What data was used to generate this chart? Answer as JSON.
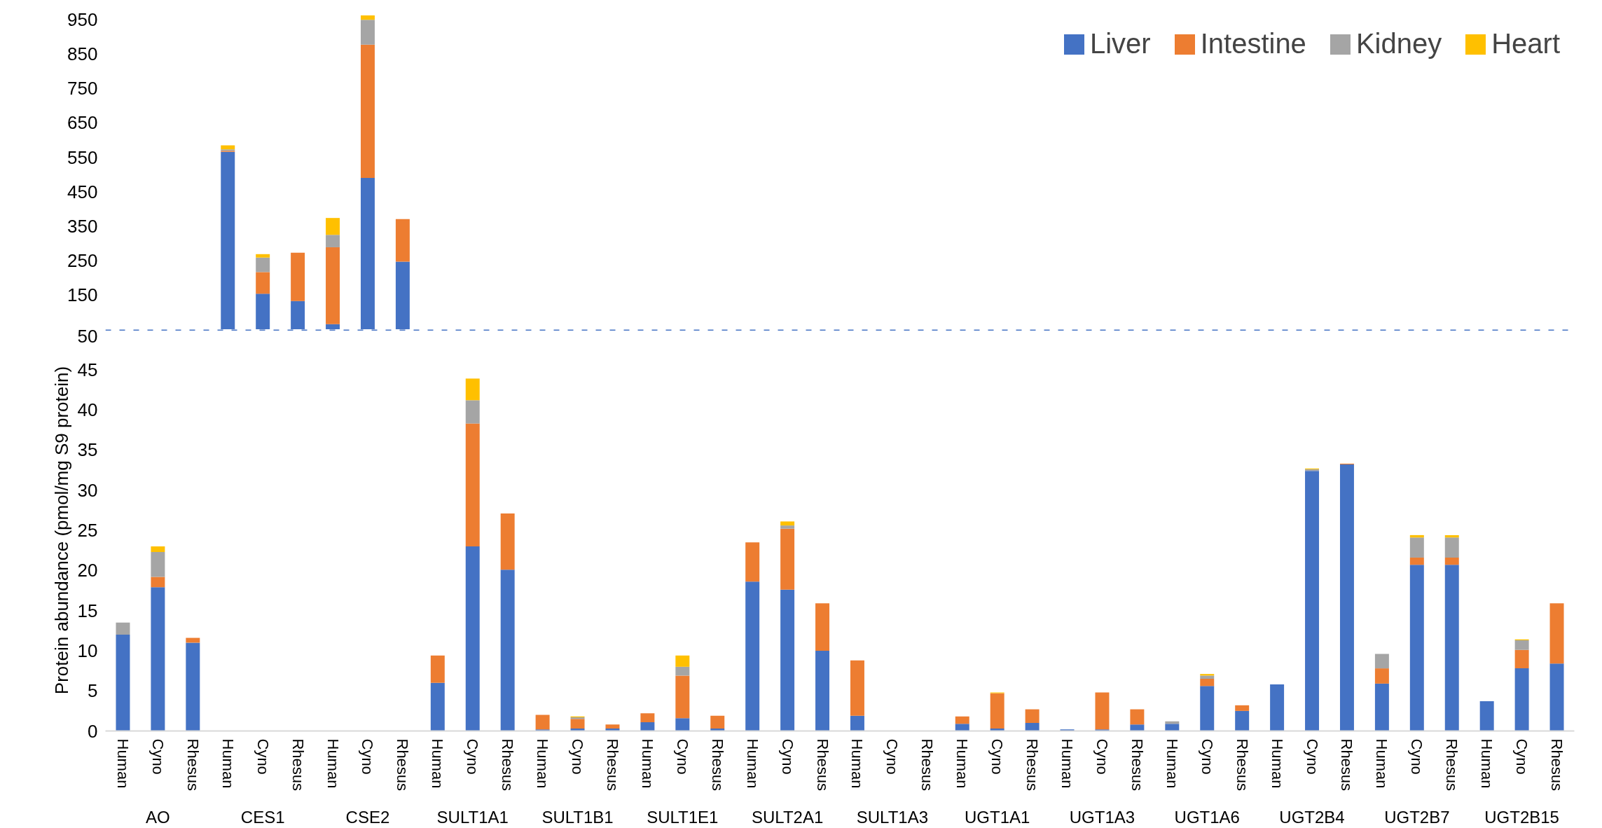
{
  "chart_data": [
    {
      "type": "bar",
      "tick_labels": "y",
      "legend": "top right",
      "ylim": [
        50,
        965
      ],
      "yticks": [
        150,
        250,
        350,
        450,
        550,
        650,
        750,
        850,
        950
      ],
      "categories": [
        null,
        null,
        null,
        null,
        null,
        null,
        null,
        null,
        null,
        null,
        null,
        null,
        null,
        null,
        null,
        null,
        null,
        null,
        null,
        null,
        null,
        null,
        null,
        null,
        null,
        null,
        null,
        null,
        null,
        null,
        null,
        null,
        null,
        null,
        null,
        null,
        null,
        null,
        null,
        null,
        null,
        null
      ],
      "series": [
        {
          "name": "Liver",
          "color": "#4472c4",
          "values": [
            null,
            null,
            null,
            566,
            154,
            133,
            66,
            490,
            247,
            null,
            null,
            null,
            null,
            null,
            null,
            null,
            null,
            null,
            null,
            null,
            null,
            null,
            null,
            null,
            null,
            null,
            null,
            null,
            null,
            null,
            null,
            null,
            null,
            null,
            null,
            null,
            null,
            null,
            null,
            null,
            null,
            null
          ]
        },
        {
          "name": "Intestine",
          "color": "#ed7d31",
          "base": [
            null,
            null,
            null,
            566,
            154,
            133,
            66,
            490,
            247,
            null,
            null,
            null,
            null,
            null,
            null,
            null,
            null,
            null,
            null,
            null,
            null,
            null,
            null,
            null,
            null,
            null,
            null,
            null,
            null,
            null,
            null,
            null,
            null,
            null,
            null,
            null,
            null,
            null,
            null,
            null,
            null,
            null
          ],
          "values": [
            null,
            null,
            null,
            3,
            63,
            140,
            223,
            387,
            124,
            null,
            null,
            null,
            null,
            null,
            null,
            null,
            null,
            null,
            null,
            null,
            null,
            null,
            null,
            null,
            null,
            null,
            null,
            null,
            null,
            null,
            null,
            null,
            null,
            null,
            null,
            null,
            null,
            null,
            null,
            null,
            null,
            null
          ]
        },
        {
          "name": "Kidney",
          "color": "#a5a5a5",
          "base": [
            null,
            null,
            null,
            569,
            217,
            null,
            289,
            877,
            null,
            null,
            null,
            null,
            null,
            null,
            null,
            null,
            null,
            null,
            null,
            null,
            null,
            null,
            null,
            null,
            null,
            null,
            null,
            null,
            null,
            null,
            null,
            null,
            null,
            null,
            null,
            null,
            null,
            null,
            null,
            null,
            null,
            null
          ],
          "values": [
            null,
            null,
            null,
            4,
            42,
            null,
            36,
            72,
            null,
            null,
            null,
            null,
            null,
            null,
            null,
            null,
            null,
            null,
            null,
            null,
            null,
            null,
            null,
            null,
            null,
            null,
            null,
            null,
            null,
            null,
            null,
            null,
            null,
            null,
            null,
            null,
            null,
            null,
            null,
            null,
            null,
            null
          ]
        },
        {
          "name": "Heart",
          "color": "#ffc000",
          "base": [
            null,
            null,
            null,
            573,
            259,
            null,
            325,
            949,
            null,
            null,
            null,
            null,
            null,
            null,
            null,
            null,
            null,
            null,
            null,
            null,
            null,
            null,
            null,
            null,
            null,
            null,
            null,
            null,
            null,
            null,
            null,
            null,
            null,
            null,
            null,
            null,
            null,
            null,
            null,
            null,
            null,
            null
          ],
          "values": [
            null,
            null,
            null,
            12,
            10,
            null,
            49,
            13,
            null,
            null,
            null,
            null,
            null,
            null,
            null,
            null,
            null,
            null,
            null,
            null,
            null,
            null,
            null,
            null,
            null,
            null,
            null,
            null,
            null,
            null,
            null,
            null,
            null,
            null,
            null,
            null,
            null,
            null,
            null,
            null,
            null,
            null
          ]
        }
      ]
    },
    {
      "type": "bar",
      "stacked": true,
      "ylabel": "Protein abundance (pmol/mg S9 protein)",
      "ylim": [
        0,
        50
      ],
      "yticks": [
        0,
        5,
        10,
        15,
        20,
        25,
        30,
        35,
        40,
        45,
        50
      ],
      "ref_lines": [
        {
          "axis": "y",
          "value": 50,
          "color": "#4472c4",
          "line_style": "dashed"
        }
      ],
      "annotations": [
        "AO",
        "CES1",
        "CSE2",
        "SULT1A1",
        "SULT1B1",
        "SULT1E1",
        "SULT2A1",
        "SULT1A3",
        "UGT1A1",
        "UGT1A3",
        "UGT1A6",
        "UGT2B4",
        "UGT2B7",
        "UGT2B15"
      ],
      "categories": [
        "Human",
        "Cyno",
        "Rhesus",
        "Human",
        "Cyno",
        "Rhesus",
        "Human",
        "Cyno",
        "Rhesus",
        "Human",
        "Cyno",
        "Rhesus",
        "Human",
        "Cyno",
        "Rhesus",
        "Human",
        "Cyno",
        "Rhesus",
        "Human",
        "Cyno",
        "Rhesus",
        "Human",
        "Cyno",
        "Rhesus",
        "Human",
        "Cyno",
        "Rhesus",
        "Human",
        "Cyno",
        "Rhesus",
        "Human",
        "Cyno",
        "Rhesus",
        "Human",
        "Cyno",
        "Rhesus",
        "Human",
        "Cyno",
        "Rhesus",
        "Human",
        "Cyno",
        "Rhesus"
      ],
      "series": [
        {
          "color": "#4472c4",
          "values": [
            12.0,
            17.9,
            11.0,
            null,
            null,
            null,
            null,
            null,
            null,
            6.0,
            23.0,
            20.1,
            0.2,
            0.3,
            0.3,
            1.1,
            1.6,
            0.3,
            18.6,
            17.6,
            10.0,
            1.9,
            0,
            0,
            0.9,
            0.3,
            1.0,
            0.2,
            0.2,
            0.8,
            0.9,
            5.6,
            2.5,
            5.8,
            32.4,
            33.2,
            5.9,
            20.7,
            20.7,
            3.7,
            7.8,
            8.4
          ]
        },
        {
          "color": "#ed7d31",
          "values": [
            0,
            1.3,
            0.6,
            null,
            null,
            null,
            null,
            null,
            null,
            3.4,
            15.3,
            7.0,
            1.8,
            1.2,
            0.5,
            1.1,
            5.3,
            1.6,
            4.9,
            7.6,
            5.9,
            6.9,
            0,
            0,
            0.9,
            4.4,
            1.7,
            0,
            4.6,
            1.9,
            0,
            0.9,
            0.7,
            0,
            0,
            0.1,
            1.9,
            0.9,
            0.9,
            0,
            2.3,
            7.5
          ]
        },
        {
          "color": "#a5a5a5",
          "values": [
            1.5,
            3.1,
            0,
            null,
            null,
            null,
            null,
            null,
            null,
            0,
            2.9,
            0,
            0,
            0.2,
            0,
            0,
            1.1,
            0,
            0,
            0.4,
            0,
            0,
            0,
            0,
            0,
            0,
            0,
            0,
            0,
            0,
            0.3,
            0.4,
            0,
            0,
            0.2,
            0,
            1.8,
            2.5,
            2.5,
            0,
            1.2,
            0
          ]
        },
        {
          "color": "#ffc000",
          "values": [
            0,
            0.7,
            0,
            null,
            null,
            null,
            null,
            null,
            null,
            0,
            2.7,
            0,
            0,
            0.1,
            0,
            0,
            1.4,
            0,
            0,
            0.5,
            0,
            0,
            0,
            0,
            0,
            0.1,
            0,
            0,
            0,
            0,
            0,
            0.2,
            0,
            0,
            0.1,
            0,
            0,
            0.3,
            0.3,
            0,
            0.1,
            0
          ]
        }
      ]
    }
  ]
}
